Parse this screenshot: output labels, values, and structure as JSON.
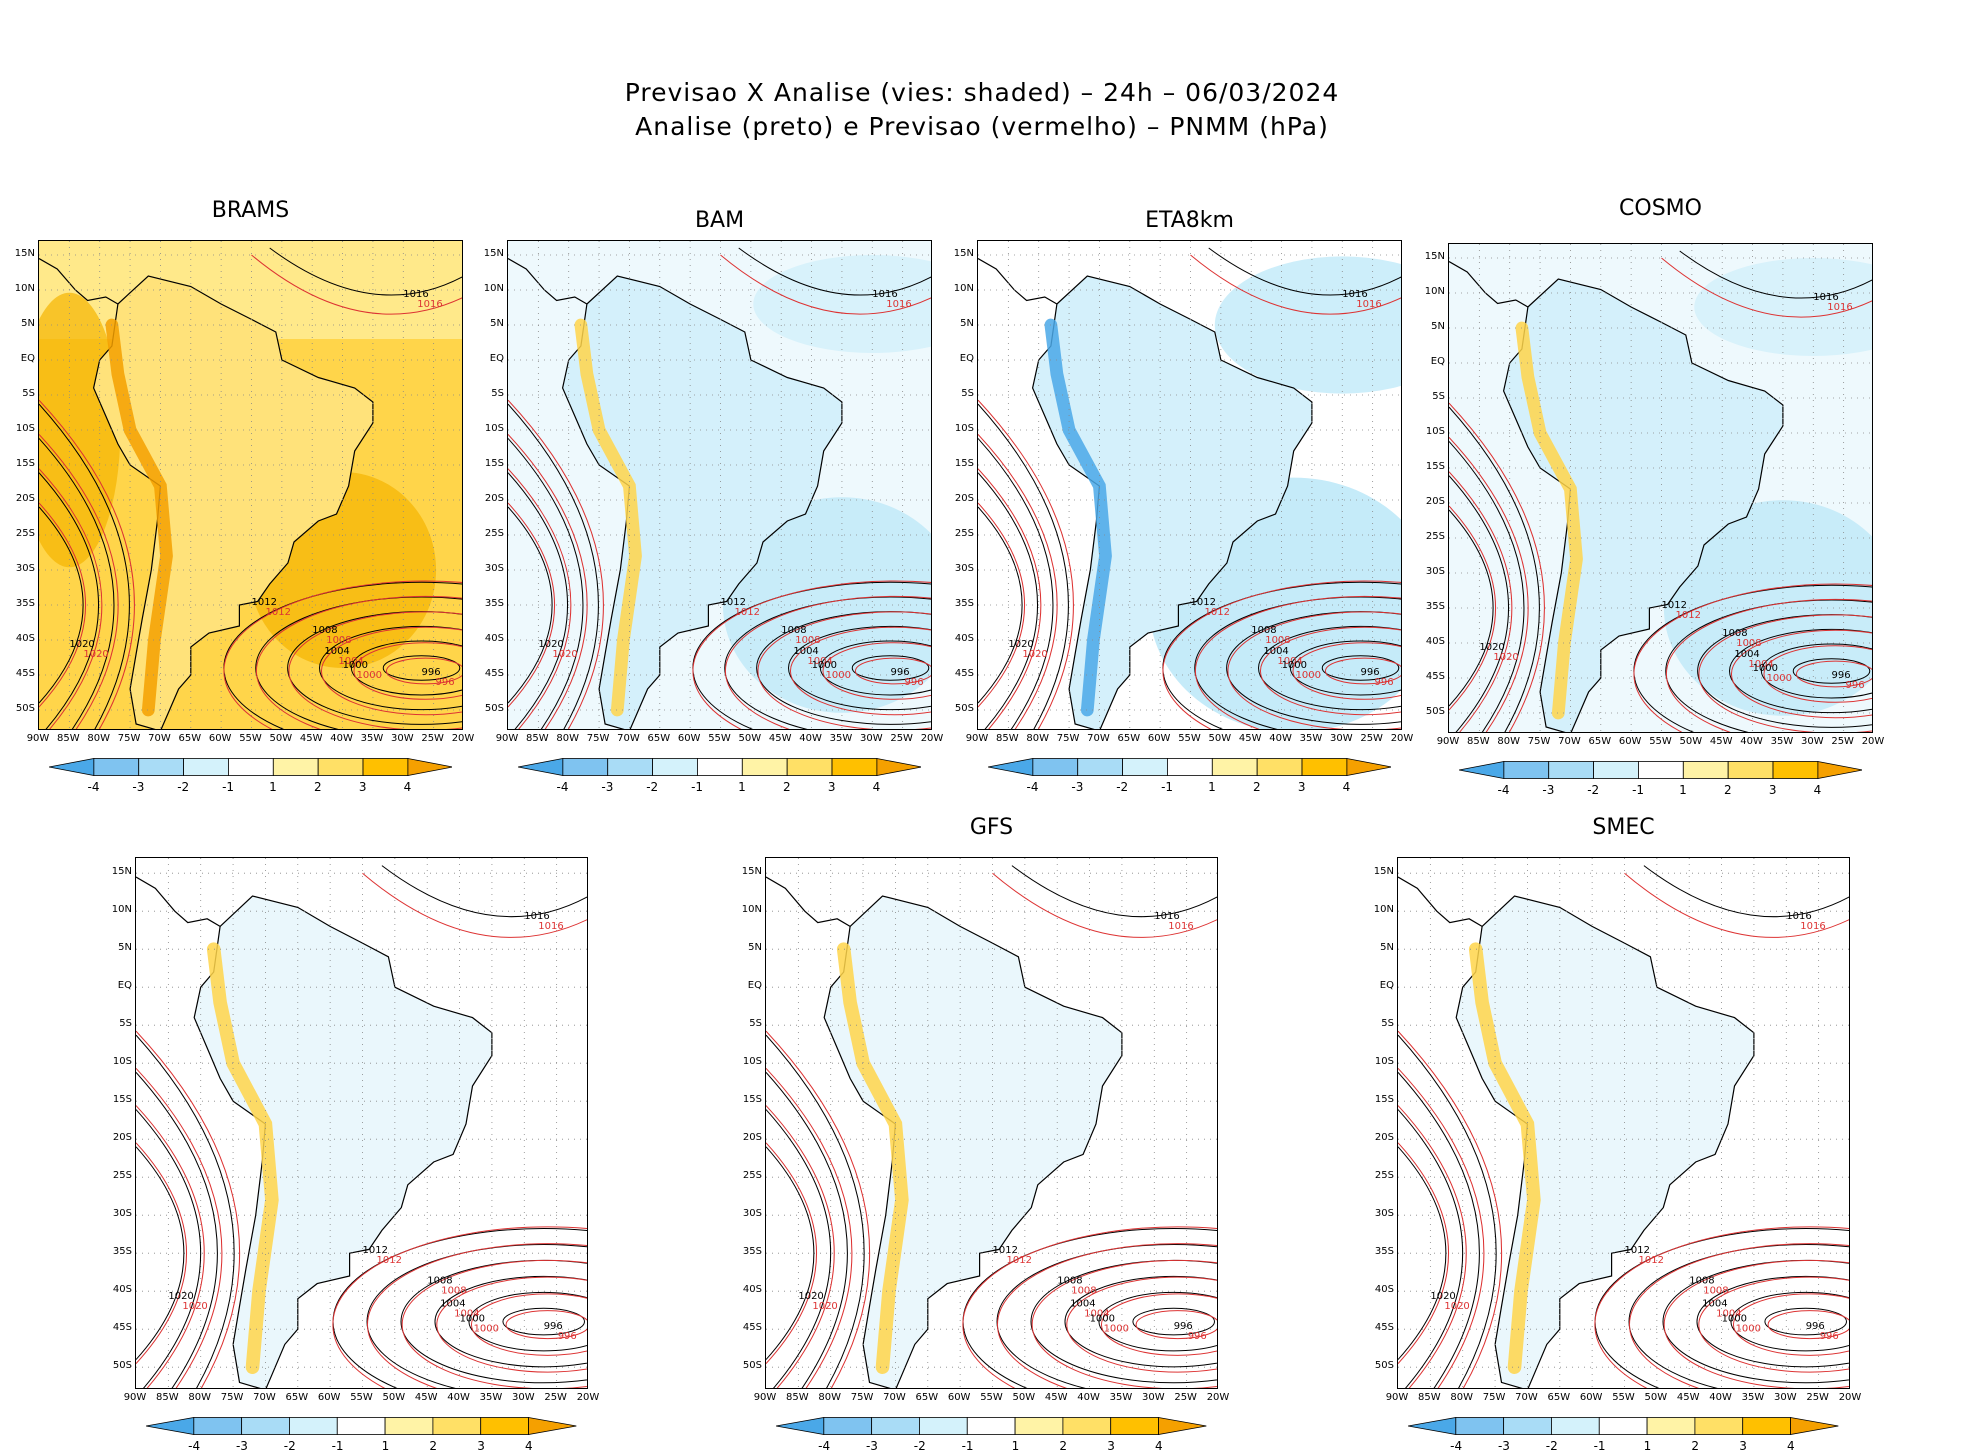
{
  "figure": {
    "title_line1": "Previsao X Analise (vies: shaded) – 24h – 06/03/2024",
    "title_line2": "Analise (preto) e Previsao (vermelho) – PNMM (hPa)"
  },
  "lat_labels": [
    "15N",
    "10N",
    "5N",
    "EQ",
    "5S",
    "10S",
    "15S",
    "20S",
    "25S",
    "30S",
    "35S",
    "40S",
    "45S",
    "50S"
  ],
  "lon_labels": [
    "90W",
    "85W",
    "80W",
    "75W",
    "70W",
    "65W",
    "60W",
    "55W",
    "50W",
    "45W",
    "40W",
    "35W",
    "30W",
    "25W",
    "20W"
  ],
  "colorbar": {
    "labels": [
      "-4",
      "-3",
      "-2",
      "-1",
      "1",
      "2",
      "3",
      "4"
    ],
    "colors": [
      "#4aa8e8",
      "#7fc3f0",
      "#a9dcf6",
      "#d4f2fb",
      "#ffffff",
      "#fff3a6",
      "#ffe066",
      "#ffc000",
      "#f5a000"
    ]
  },
  "panels": [
    {
      "id": "brams",
      "name": "BRAMS",
      "bias": "warm"
    },
    {
      "id": "bam",
      "name": "BAM",
      "bias": "cool"
    },
    {
      "id": "eta8km",
      "name": "ETA8km",
      "bias": "cold"
    },
    {
      "id": "cosmo",
      "name": "COSMO",
      "bias": "cool"
    },
    {
      "id": "unnamed",
      "name": "",
      "bias": "mixed"
    },
    {
      "id": "gfs",
      "name": "GFS",
      "bias": "mixed"
    },
    {
      "id": "smec",
      "name": "SMEC",
      "bias": "mixed"
    }
  ],
  "contour_labels": {
    "black": [
      "1016",
      "1012",
      "1008",
      "1004",
      "1000",
      "996",
      "1020"
    ],
    "red": [
      "1016",
      "1012",
      "1008",
      "1004",
      "1000",
      "996",
      "1020"
    ]
  }
}
